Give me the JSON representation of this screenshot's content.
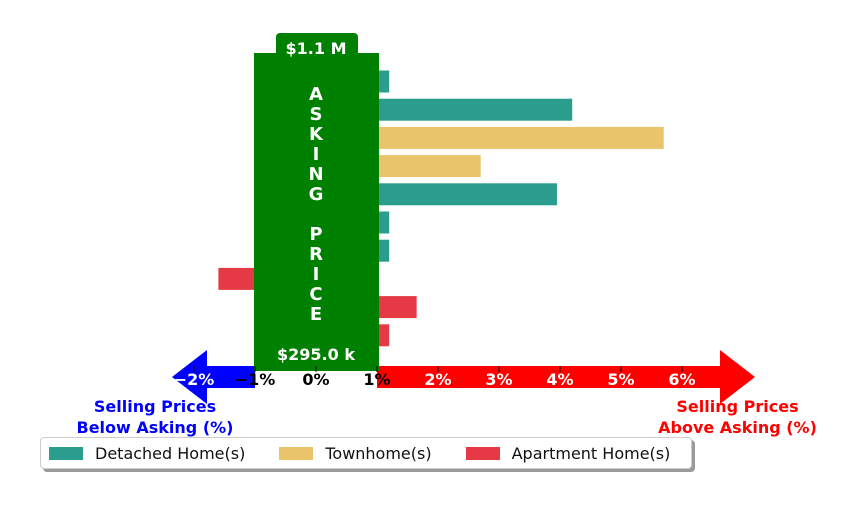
{
  "chart_data": {
    "type": "bar",
    "orientation": "horizontal",
    "x_unit": "% difference between selling and asking price",
    "xlim": [
      -2.3,
      7.2
    ],
    "x_ticks": [
      "−2%",
      "−1%",
      "0%",
      "1%",
      "2%",
      "3%",
      "4%",
      "5%",
      "6%"
    ],
    "x_tick_values": [
      -2,
      -1,
      0,
      1,
      2,
      3,
      4,
      5,
      6
    ],
    "bars": [
      {
        "type": "Detached Home(s)",
        "value": 1.2
      },
      {
        "type": "Detached Home(s)",
        "value": 4.2
      },
      {
        "type": "Townhome(s)",
        "value": 5.7
      },
      {
        "type": "Townhome(s)",
        "value": 2.7
      },
      {
        "type": "Detached Home(s)",
        "value": 3.95
      },
      {
        "type": "Detached Home(s)",
        "value": 1.2
      },
      {
        "type": "Detached Home(s)",
        "value": 1.2
      },
      {
        "type": "Apartment Home(s)",
        "value": -1.6
      },
      {
        "type": "Apartment Home(s)",
        "value": 1.65
      },
      {
        "type": "Apartment Home(s)",
        "value": 1.2
      }
    ],
    "asking_price_band": {
      "span": [
        -1,
        1
      ],
      "label_letters": [
        "A",
        "S",
        "K",
        "I",
        "N",
        "G",
        "",
        "P",
        "R",
        "I",
        "C",
        "E"
      ],
      "top_label": "$1.1 M",
      "bottom_label": "$295.0 k"
    },
    "left_label": [
      "Selling Prices",
      "Below Asking (%)"
    ],
    "right_label": [
      "Selling Prices",
      "Above Asking (%)"
    ],
    "legend": [
      {
        "label": "Detached Home(s)",
        "color": "#2a9d8f"
      },
      {
        "label": "Townhome(s)",
        "color": "#e9c46a"
      },
      {
        "label": "Apartment Home(s)",
        "color": "#e63946"
      }
    ],
    "legend_position": "bottom-left",
    "grid": false
  },
  "colors": {
    "band": "#008000",
    "left_arrow": "#0000ff",
    "right_arrow": "#ff0000",
    "left_label": "#0000ff",
    "right_label": "#ff0000"
  }
}
